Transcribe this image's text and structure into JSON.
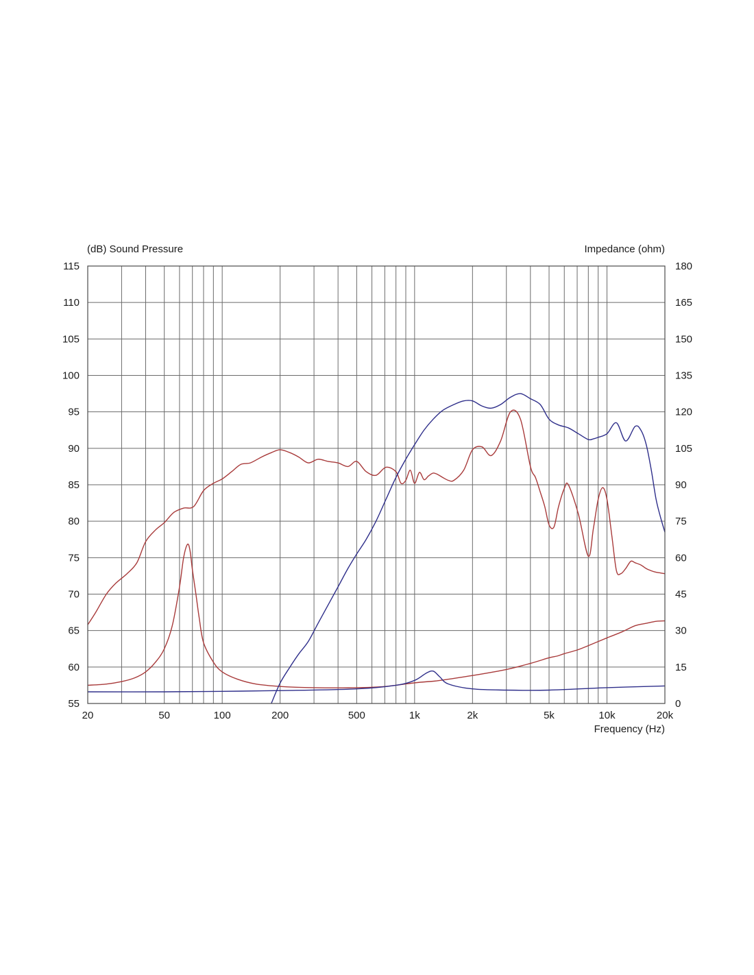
{
  "chart_data": {
    "type": "line",
    "left_axis_title": "(dB)  Sound Pressure",
    "right_axis_title": "Impedance  (ohm)",
    "x_axis_title": "Frequency  (Hz)",
    "x_scale": "log",
    "xlim": [
      20,
      20000
    ],
    "ylim_left": [
      55,
      115
    ],
    "ylim_right": [
      0,
      180
    ],
    "grid": true,
    "x_ticks": [
      {
        "value": 20,
        "label": "20"
      },
      {
        "value": 50,
        "label": "50"
      },
      {
        "value": 100,
        "label": "100"
      },
      {
        "value": 200,
        "label": "200"
      },
      {
        "value": 500,
        "label": "500"
      },
      {
        "value": 1000,
        "label": "1k"
      },
      {
        "value": 2000,
        "label": "2k"
      },
      {
        "value": 5000,
        "label": "5k"
      },
      {
        "value": 10000,
        "label": "10k"
      },
      {
        "value": 20000,
        "label": "20k"
      }
    ],
    "y_ticks_left": [
      "55",
      "60",
      "65",
      "70",
      "75",
      "80",
      "85",
      "90",
      "95",
      "100",
      "105",
      "110",
      "115"
    ],
    "y_ticks_right": [
      "0",
      "15",
      "30",
      "45",
      "60",
      "75",
      "90",
      "105",
      "120",
      "135",
      "150",
      "165",
      "180"
    ],
    "series": [
      {
        "axis": "left",
        "color": "#a83a3a",
        "x": [
          20,
          22,
          25,
          28,
          32,
          36,
          40,
          45,
          50,
          56,
          63,
          71,
          80,
          90,
          100,
          112,
          125,
          140,
          160,
          180,
          200,
          225,
          250,
          280,
          315,
          355,
          400,
          450,
          500,
          560,
          630,
          710,
          800,
          850,
          900,
          950,
          1000,
          1060,
          1120,
          1180,
          1250,
          1320,
          1400,
          1500,
          1600,
          1800,
          2000,
          2240,
          2500,
          2800,
          3150,
          3550,
          4000,
          4250,
          4500,
          4750,
          5000,
          5300,
          5600,
          6000,
          6300,
          7100,
          8000,
          8500,
          9000,
          9500,
          10000,
          10600,
          11200,
          11800,
          12500,
          13300,
          14000,
          15000,
          16000,
          17000,
          18000,
          19000,
          20000
        ],
        "values": [
          65.8,
          67.5,
          70.0,
          71.5,
          72.8,
          74.3,
          77.2,
          78.8,
          79.8,
          81.2,
          81.8,
          82.0,
          84.2,
          85.2,
          85.8,
          86.8,
          87.8,
          88.0,
          88.8,
          89.4,
          89.8,
          89.4,
          88.8,
          88.0,
          88.5,
          88.2,
          88.0,
          87.5,
          88.2,
          86.8,
          86.3,
          87.4,
          86.8,
          85.2,
          85.6,
          87.0,
          85.2,
          86.7,
          85.7,
          86.2,
          86.6,
          86.4,
          86.0,
          85.6,
          85.6,
          87.0,
          89.8,
          90.2,
          89.0,
          91.0,
          95.0,
          94.0,
          87.5,
          86.0,
          84.0,
          82.0,
          79.5,
          79.2,
          82.0,
          84.5,
          85.0,
          81.0,
          75.2,
          79.0,
          83.0,
          84.6,
          83.0,
          78.0,
          73.2,
          72.8,
          73.5,
          74.5,
          74.3,
          74.0,
          73.5,
          73.2,
          73.0,
          72.9,
          72.8
        ]
      },
      {
        "axis": "right",
        "color": "#a83a3a",
        "x": [
          20,
          25,
          30,
          35,
          40,
          45,
          50,
          55,
          60,
          63,
          66,
          68,
          70,
          73,
          76,
          80,
          90,
          100,
          120,
          150,
          200,
          300,
          500,
          700,
          1000,
          1300,
          1500,
          2000,
          3000,
          4000,
          5000,
          5500,
          6000,
          7000,
          8000,
          10000,
          12000,
          14000,
          16000,
          18000,
          20000
        ],
        "values": [
          7.5,
          8.0,
          9.0,
          10.5,
          13.0,
          17.0,
          22.5,
          32.0,
          48.0,
          60.0,
          65.5,
          63.0,
          55.0,
          45.0,
          35.0,
          25.0,
          17.0,
          13.0,
          10.0,
          8.0,
          7.0,
          6.5,
          6.5,
          7.0,
          8.5,
          9.3,
          10.0,
          11.5,
          14.0,
          16.5,
          18.8,
          19.5,
          20.5,
          22.0,
          23.8,
          27.0,
          29.5,
          32.0,
          33.0,
          33.8,
          34.0
        ]
      },
      {
        "axis": "left",
        "color": "#2e2e8a",
        "x": [
          180,
          200,
          225,
          250,
          280,
          315,
          355,
          400,
          450,
          500,
          560,
          630,
          710,
          800,
          900,
          1000,
          1120,
          1250,
          1400,
          1600,
          1800,
          2000,
          2240,
          2500,
          2800,
          3150,
          3550,
          4000,
          4500,
          5000,
          5600,
          6300,
          7100,
          8000,
          8500,
          9000,
          10000,
          11200,
          12500,
          14000,
          15000,
          16000,
          17000,
          18000,
          19000,
          20000
        ],
        "values": [
          55.0,
          57.8,
          60.0,
          61.8,
          63.5,
          66.0,
          68.5,
          71.0,
          73.5,
          75.5,
          77.5,
          80.0,
          83.0,
          86.0,
          88.5,
          90.5,
          92.5,
          94.0,
          95.2,
          96.0,
          96.5,
          96.5,
          95.8,
          95.5,
          96.0,
          97.0,
          97.5,
          96.8,
          96.0,
          94.0,
          93.2,
          92.8,
          92.0,
          91.2,
          91.3,
          91.5,
          92.0,
          93.5,
          91.0,
          93.0,
          92.5,
          90.5,
          87.0,
          83.0,
          80.5,
          78.5
        ]
      },
      {
        "axis": "right",
        "color": "#2e2e8a",
        "x": [
          20,
          50,
          100,
          200,
          500,
          800,
          1000,
          1150,
          1250,
          1350,
          1500,
          2000,
          3000,
          5000,
          10000,
          20000
        ],
        "values": [
          4.8,
          4.8,
          5.0,
          5.3,
          6.0,
          7.5,
          9.5,
          12.5,
          13.3,
          11.0,
          8.0,
          6.0,
          5.5,
          5.5,
          6.5,
          7.2
        ]
      }
    ]
  }
}
